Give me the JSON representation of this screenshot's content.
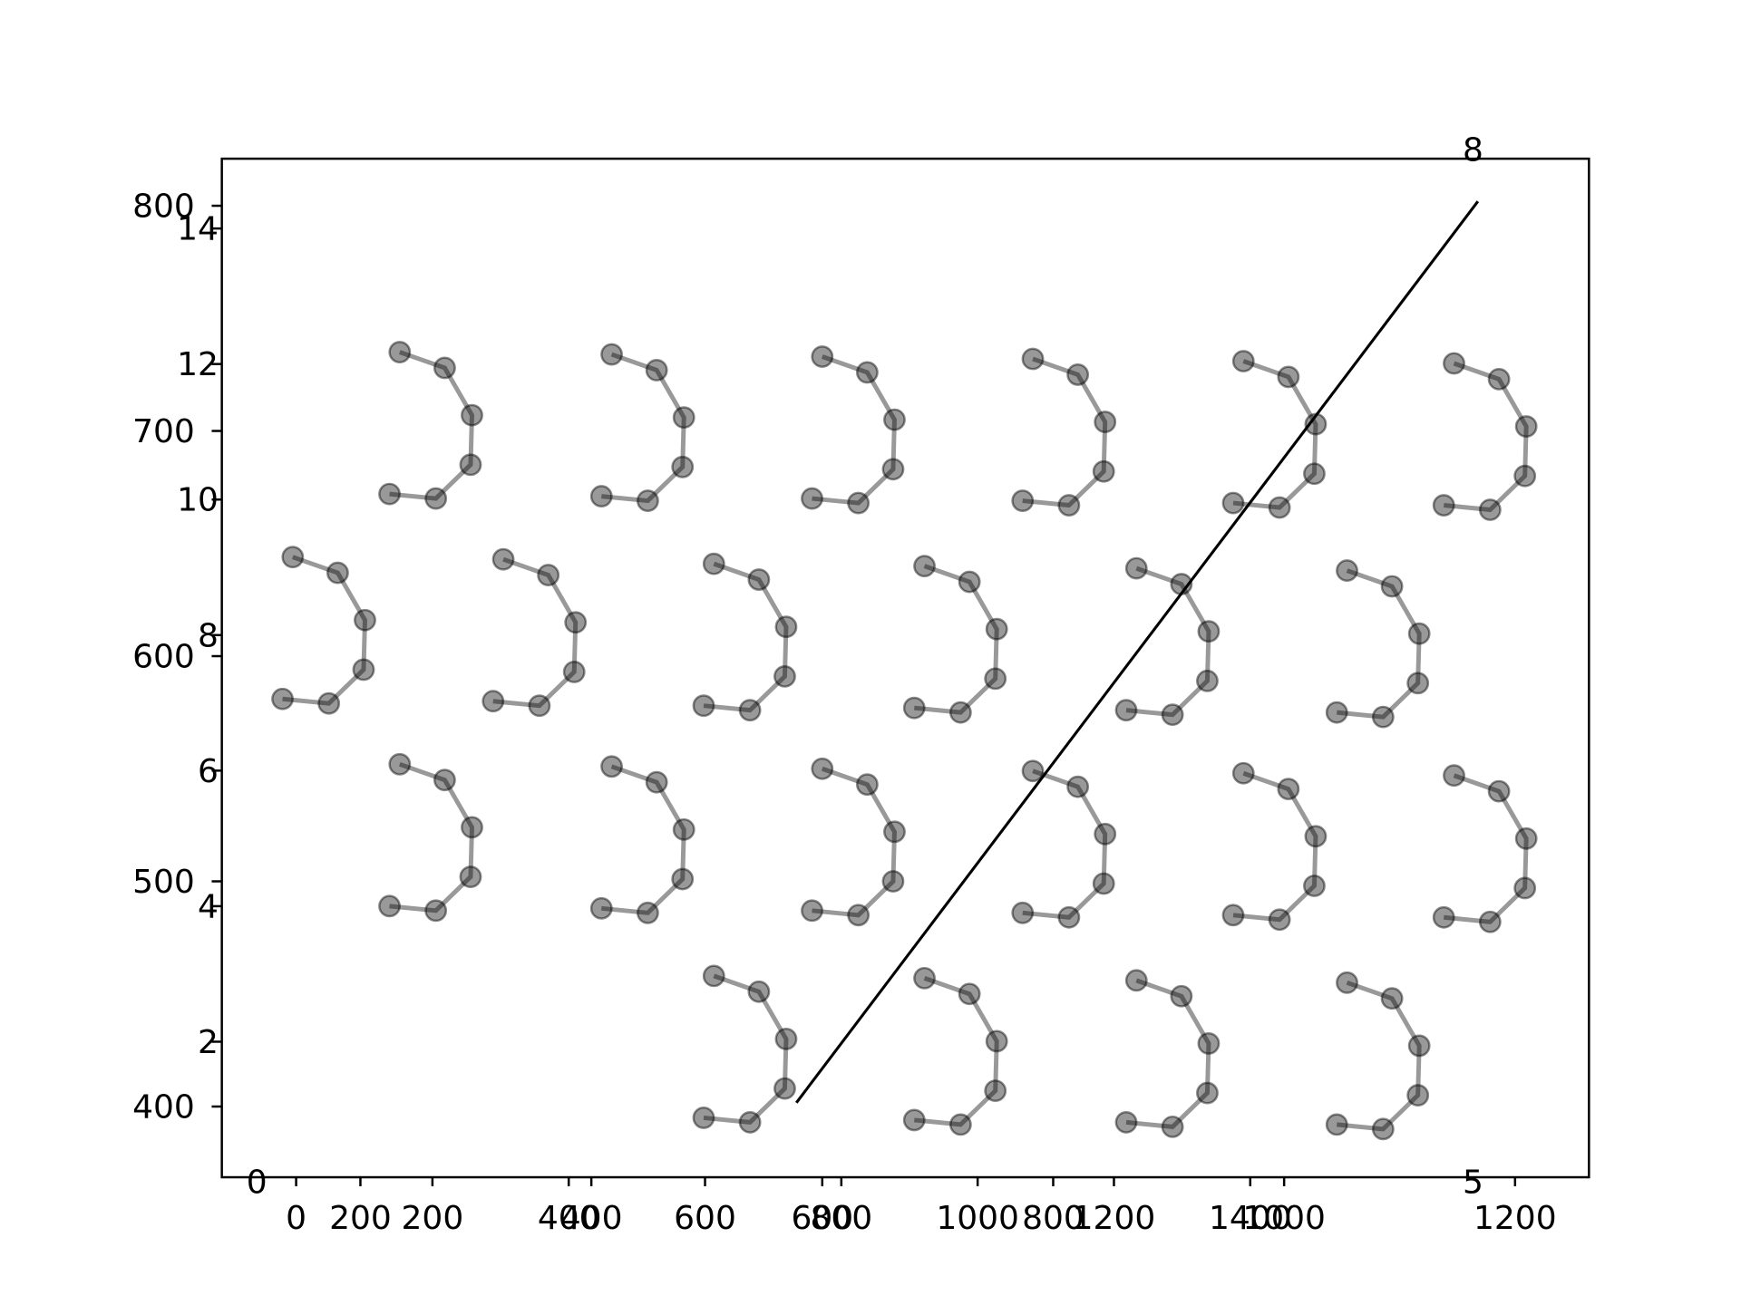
{
  "chart_data": [
    {
      "type": "scatter",
      "color": "#000000",
      "xlim": [
        -109,
        1897
      ],
      "xticks": [
        0,
        200,
        400,
        600,
        800,
        1000,
        1200,
        1400
      ],
      "ylim": [
        368.6,
        820.9
      ],
      "yticks": [
        400,
        500,
        600,
        700,
        800
      ],
      "series": [
        {
          "x": [
            152,
            218,
            258,
            256,
            205,
            137
          ],
          "y": [
            735,
            728,
            707,
            685,
            670,
            672
          ]
        },
        {
          "x": [
            463,
            529,
            569,
            567,
            516,
            448
          ],
          "y": [
            734,
            727,
            706,
            684,
            669,
            671
          ]
        },
        {
          "x": [
            772,
            838,
            878,
            876,
            825,
            757
          ],
          "y": [
            733,
            726,
            705,
            683,
            668,
            670
          ]
        },
        {
          "x": [
            1081,
            1147,
            1187,
            1185,
            1134,
            1066
          ],
          "y": [
            732,
            725,
            704,
            682,
            667,
            669
          ]
        },
        {
          "x": [
            1390,
            1456,
            1496,
            1494,
            1443,
            1375
          ],
          "y": [
            731,
            724,
            703,
            681,
            666,
            668
          ]
        },
        {
          "x": [
            1699,
            1765,
            1805,
            1803,
            1752,
            1684
          ],
          "y": [
            730,
            723,
            702,
            680,
            665,
            667
          ]
        },
        {
          "x": [
            -5,
            61,
            101,
            99,
            48,
            -20
          ],
          "y": [
            644,
            637,
            616,
            594,
            579,
            581
          ]
        },
        {
          "x": [
            304,
            370,
            410,
            408,
            357,
            289
          ],
          "y": [
            643,
            636,
            615,
            593,
            578,
            580
          ]
        },
        {
          "x": [
            613,
            679,
            719,
            717,
            666,
            598
          ],
          "y": [
            641,
            634,
            613,
            591,
            576,
            578
          ]
        },
        {
          "x": [
            922,
            988,
            1028,
            1026,
            975,
            907
          ],
          "y": [
            640,
            633,
            612,
            590,
            575,
            577
          ]
        },
        {
          "x": [
            1233,
            1299,
            1339,
            1337,
            1286,
            1218
          ],
          "y": [
            639,
            632,
            611,
            589,
            574,
            576
          ]
        },
        {
          "x": [
            1542,
            1608,
            1648,
            1646,
            1595,
            1527
          ],
          "y": [
            638,
            631,
            610,
            588,
            573,
            575
          ]
        },
        {
          "x": [
            152,
            218,
            258,
            256,
            205,
            137
          ],
          "y": [
            552,
            545,
            524,
            502,
            487,
            489
          ]
        },
        {
          "x": [
            463,
            529,
            569,
            567,
            516,
            448
          ],
          "y": [
            551,
            544,
            523,
            501,
            486,
            488
          ]
        },
        {
          "x": [
            772,
            838,
            878,
            876,
            825,
            757
          ],
          "y": [
            550,
            543,
            522,
            500,
            485,
            487
          ]
        },
        {
          "x": [
            1081,
            1147,
            1187,
            1185,
            1134,
            1066
          ],
          "y": [
            549,
            542,
            521,
            499,
            484,
            486
          ]
        },
        {
          "x": [
            1390,
            1456,
            1496,
            1494,
            1443,
            1375
          ],
          "y": [
            548,
            541,
            520,
            498,
            483,
            485
          ]
        },
        {
          "x": [
            1699,
            1765,
            1805,
            1803,
            1752,
            1684
          ],
          "y": [
            547,
            540,
            519,
            497,
            482,
            484
          ]
        },
        {
          "x": [
            613,
            679,
            719,
            717,
            666,
            598
          ],
          "y": [
            458,
            451,
            430,
            408,
            393,
            395
          ]
        },
        {
          "x": [
            922,
            988,
            1028,
            1026,
            975,
            907
          ],
          "y": [
            457,
            450,
            429,
            407,
            392,
            394
          ]
        },
        {
          "x": [
            1233,
            1299,
            1339,
            1337,
            1286,
            1218
          ],
          "y": [
            456,
            449,
            428,
            406,
            391,
            393
          ]
        },
        {
          "x": [
            1542,
            1608,
            1648,
            1646,
            1595,
            1527
          ],
          "y": [
            455,
            448,
            427,
            405,
            390,
            392
          ]
        }
      ]
    },
    {
      "type": "line",
      "color": "#000000",
      "xlim": [
        80,
        1264
      ],
      "xticks": [
        200,
        400,
        600,
        800,
        1000,
        1200
      ],
      "y2lim": [
        0,
        15.03
      ],
      "y2ticks": [
        2,
        4,
        6,
        8,
        10,
        12,
        14
      ],
      "series": [
        {
          "x": [
            577.6,
            1167.8
          ],
          "values": [
            1.1,
            14.4
          ],
          "axis": "y2"
        }
      ]
    },
    {
      "type": "labels",
      "texts": [
        "0",
        "5",
        "8"
      ]
    }
  ]
}
